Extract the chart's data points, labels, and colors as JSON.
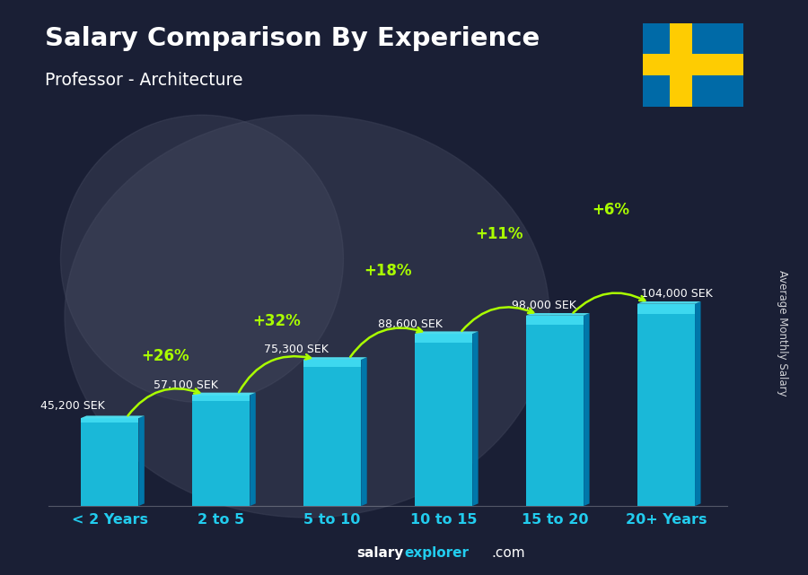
{
  "title": "Salary Comparison By Experience",
  "subtitle": "Professor - Architecture",
  "categories": [
    "< 2 Years",
    "2 to 5",
    "5 to 10",
    "10 to 15",
    "15 to 20",
    "20+ Years"
  ],
  "values": [
    45200,
    57100,
    75300,
    88600,
    98000,
    104000
  ],
  "value_labels": [
    "45,200 SEK",
    "57,100 SEK",
    "75,300 SEK",
    "88,600 SEK",
    "98,000 SEK",
    "104,000 SEK"
  ],
  "pct_changes": [
    "+26%",
    "+32%",
    "+18%",
    "+11%",
    "+6%"
  ],
  "bar_color_face": "#1ab8d8",
  "bar_color_dark": "#0077aa",
  "bar_top_light": "#55eeff",
  "ylabel": "Average Monthly Salary",
  "pct_color": "#aaff00",
  "xlabel_color": "#22ccee",
  "flag_blue": "#006AA7",
  "flag_yellow": "#FECC02",
  "bg_dark": "#1a1f35",
  "footer_salary_color": "#ffffff",
  "footer_explorer_color": "#22ccee"
}
